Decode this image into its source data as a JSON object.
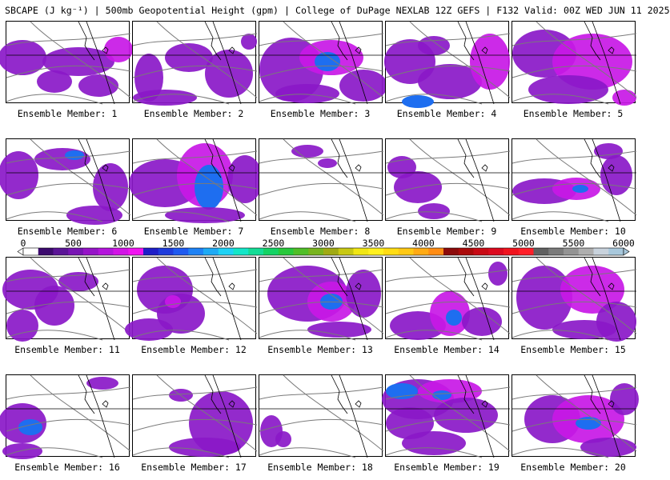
{
  "header": {
    "title": "SBCAPE (J kg⁻¹) | 500mb Geopotential Height (gpm) | College of DuPage NEXLAB 12Z GEFS | F132 Valid: 00Z WED JUN 11 2025"
  },
  "panels": [
    {
      "label": "Ensemble Member: 1"
    },
    {
      "label": "Ensemble Member: 2"
    },
    {
      "label": "Ensemble Member: 3"
    },
    {
      "label": "Ensemble Member: 4"
    },
    {
      "label": "Ensemble Member: 5"
    },
    {
      "label": "Ensemble Member: 6"
    },
    {
      "label": "Ensemble Member: 7"
    },
    {
      "label": "Ensemble Member: 8"
    },
    {
      "label": "Ensemble Member: 9"
    },
    {
      "label": "Ensemble Member: 10"
    },
    {
      "label": "Ensemble Member: 11"
    },
    {
      "label": "Ensemble Member: 12"
    },
    {
      "label": "Ensemble Member: 13"
    },
    {
      "label": "Ensemble Member: 14"
    },
    {
      "label": "Ensemble Member: 15"
    },
    {
      "label": "Ensemble Member: 16"
    },
    {
      "label": "Ensemble Member: 17"
    },
    {
      "label": "Ensemble Member: 18"
    },
    {
      "label": "Ensemble Member: 19"
    },
    {
      "label": "Ensemble Member: 20"
    }
  ],
  "colorbar": {
    "ticks": [
      "0",
      "500",
      "1000",
      "1500",
      "2000",
      "2500",
      "3000",
      "3500",
      "4000",
      "4500",
      "5000",
      "5500",
      "6000"
    ],
    "colors": [
      "#ffffff",
      "#3c0a6e",
      "#5a1496",
      "#7814b4",
      "#9614c8",
      "#b414dc",
      "#d214e6",
      "#f014f0",
      "#1e1ec8",
      "#1e3cdc",
      "#1e5af0",
      "#1e82f5",
      "#1eaaf5",
      "#1ed2f5",
      "#14e6c8",
      "#14dc96",
      "#14d264",
      "#28c83c",
      "#50be28",
      "#78b41e",
      "#a0aa14",
      "#c8c814",
      "#f0e614",
      "#fff01e",
      "#ffdc14",
      "#ffc814",
      "#ffaa14",
      "#ff8c14",
      "#8c0a0a",
      "#aa0a0a",
      "#c80a14",
      "#dc0a1e",
      "#f0141e",
      "#ff1e28",
      "#606060",
      "#7a7a7a",
      "#939393",
      "#aeaeae",
      "#c8d2dc",
      "#a8c8dc"
    ]
  }
}
